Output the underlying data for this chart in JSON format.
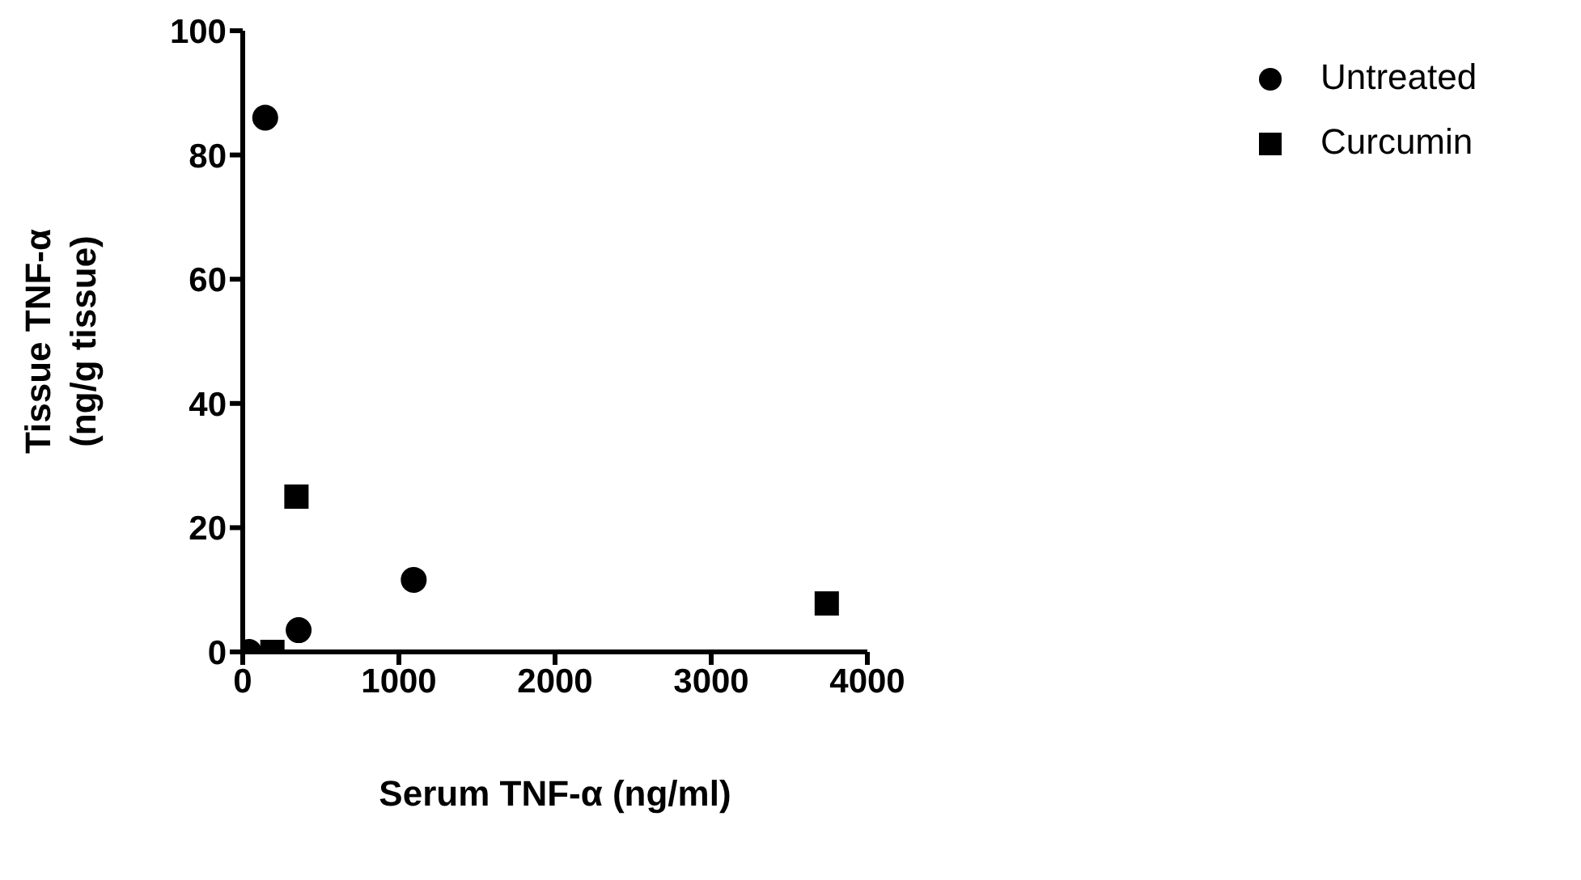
{
  "chart_data": {
    "type": "scatter",
    "xlabel": "Serum TNF-α (ng/ml)",
    "ylabel": "Tissue TNF-α\n(ng/g tissue)",
    "xlim": [
      0,
      4000
    ],
    "xticks": [
      0,
      1000,
      2000,
      3000,
      4000
    ],
    "ylim": [
      0,
      100
    ],
    "yticks": [
      0,
      20,
      40,
      60,
      80,
      100
    ],
    "grid": false,
    "legend": "top right",
    "series": [
      {
        "name": "Untreated",
        "color": "#000000",
        "marker": "circle",
        "x": [
          40,
          144,
          358,
          1095
        ],
        "values": [
          0,
          86,
          3.5,
          11.6
        ]
      },
      {
        "name": "Curcumin",
        "color": "#000000",
        "marker": "square",
        "x": [
          190,
          344,
          3740
        ],
        "values": [
          0,
          25,
          7.8
        ]
      }
    ]
  }
}
